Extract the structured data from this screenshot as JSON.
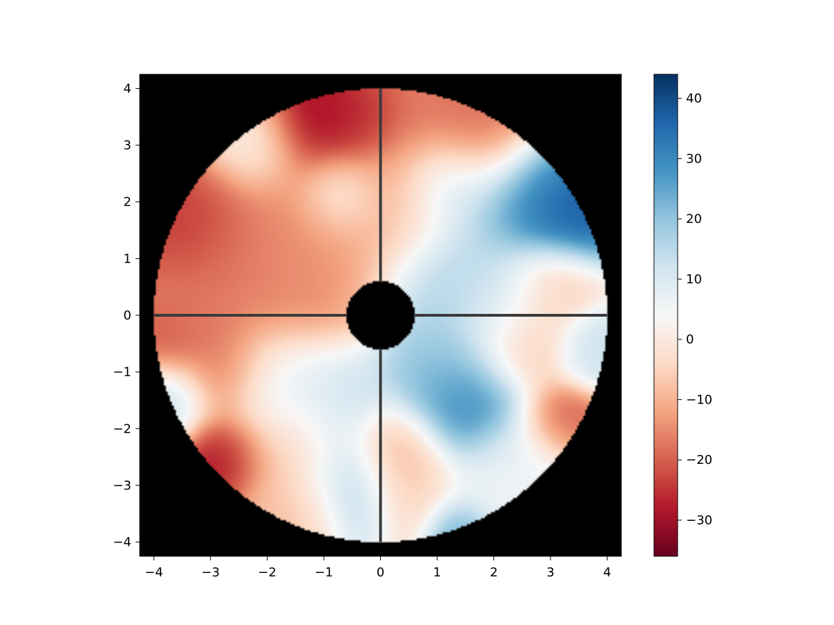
{
  "chart_data": {
    "type": "heatmap",
    "title": "",
    "xlabel": "",
    "ylabel": "",
    "xlim": [
      -4.25,
      4.25
    ],
    "ylim": [
      -4.25,
      4.25
    ],
    "x_ticks": [
      -4,
      -3,
      -2,
      -1,
      0,
      1,
      2,
      3,
      4
    ],
    "y_ticks": [
      -4,
      -3,
      -2,
      -1,
      0,
      1,
      2,
      3,
      4
    ],
    "x_tick_labels": [
      "−4",
      "−3",
      "−2",
      "−1",
      "0",
      "1",
      "2",
      "3",
      "4"
    ],
    "y_tick_labels": [
      "−4",
      "−3",
      "−2",
      "−1",
      "0",
      "1",
      "2",
      "3",
      "4"
    ],
    "background_color": "#000000",
    "aperture": {
      "outer_radius": 4.0,
      "inner_radius": 0.6,
      "spider_arms": 4,
      "spider_color": "#3a3a3a"
    },
    "colormap": "RdBu",
    "colorbar": {
      "min": -36,
      "max": 44,
      "ticks": [
        -30,
        -20,
        -10,
        0,
        10,
        20,
        30,
        40
      ],
      "tick_labels": [
        "−30",
        "−20",
        "−10",
        "0",
        "10",
        "20",
        "30",
        "40"
      ]
    },
    "grid": false,
    "blobs": [
      {
        "x": -1.2,
        "y": 3.4,
        "v": -34,
        "s": 0.55
      },
      {
        "x": -0.4,
        "y": 3.5,
        "v": -30,
        "s": 0.45
      },
      {
        "x": -3.4,
        "y": 1.6,
        "v": -28,
        "s": 0.6
      },
      {
        "x": -2.6,
        "y": 1.2,
        "v": -18,
        "s": 0.9
      },
      {
        "x": -1.6,
        "y": 0.6,
        "v": -16,
        "s": 0.9
      },
      {
        "x": -0.8,
        "y": 1.6,
        "v": -12,
        "s": 0.8
      },
      {
        "x": -2.2,
        "y": 3.0,
        "v": 4,
        "s": 0.5
      },
      {
        "x": -0.7,
        "y": 2.1,
        "v": 8,
        "s": 0.4
      },
      {
        "x": -3.3,
        "y": 0.1,
        "v": -18,
        "s": 0.6
      },
      {
        "x": -3.8,
        "y": -0.4,
        "v": -22,
        "s": 0.4
      },
      {
        "x": 0.6,
        "y": 3.3,
        "v": -18,
        "s": 0.9
      },
      {
        "x": 1.7,
        "y": 3.2,
        "v": -20,
        "s": 0.6
      },
      {
        "x": 0.4,
        "y": 2.0,
        "v": -8,
        "s": 0.6
      },
      {
        "x": 1.2,
        "y": 2.3,
        "v": 22,
        "s": 0.5
      },
      {
        "x": 3.2,
        "y": 1.8,
        "v": 42,
        "s": 0.55
      },
      {
        "x": 2.5,
        "y": 2.1,
        "v": 28,
        "s": 0.6
      },
      {
        "x": 1.3,
        "y": 0.6,
        "v": 18,
        "s": 0.8
      },
      {
        "x": 3.0,
        "y": 0.6,
        "v": -10,
        "s": 0.45
      },
      {
        "x": 2.1,
        "y": 0.3,
        "v": 10,
        "s": 0.6
      },
      {
        "x": 2.5,
        "y": -0.5,
        "v": -10,
        "s": 0.55
      },
      {
        "x": 3.7,
        "y": -0.6,
        "v": 14,
        "s": 0.4
      },
      {
        "x": 1.5,
        "y": -1.6,
        "v": 34,
        "s": 0.6
      },
      {
        "x": 1.0,
        "y": -0.9,
        "v": 20,
        "s": 0.6
      },
      {
        "x": 3.2,
        "y": -1.9,
        "v": -24,
        "s": 0.4
      },
      {
        "x": 2.6,
        "y": -2.6,
        "v": 6,
        "s": 0.6
      },
      {
        "x": 0.3,
        "y": -2.4,
        "v": -14,
        "s": 0.5
      },
      {
        "x": 0.6,
        "y": -3.1,
        "v": -6,
        "s": 0.5
      },
      {
        "x": 1.4,
        "y": -3.8,
        "v": 30,
        "s": 0.35
      },
      {
        "x": 2.0,
        "y": -3.1,
        "v": 6,
        "s": 0.6
      },
      {
        "x": -0.6,
        "y": -3.0,
        "v": 22,
        "s": 0.55
      },
      {
        "x": -0.8,
        "y": -1.5,
        "v": 16,
        "s": 0.6
      },
      {
        "x": -1.8,
        "y": -1.2,
        "v": 10,
        "s": 0.6
      },
      {
        "x": -2.8,
        "y": -2.5,
        "v": -32,
        "s": 0.45
      },
      {
        "x": -2.8,
        "y": -1.0,
        "v": -20,
        "s": 0.5
      },
      {
        "x": -1.6,
        "y": -2.3,
        "v": -8,
        "s": 0.7
      },
      {
        "x": -3.7,
        "y": -1.5,
        "v": 16,
        "s": 0.45
      },
      {
        "x": -1.4,
        "y": -3.4,
        "v": -10,
        "s": 0.5
      }
    ]
  }
}
